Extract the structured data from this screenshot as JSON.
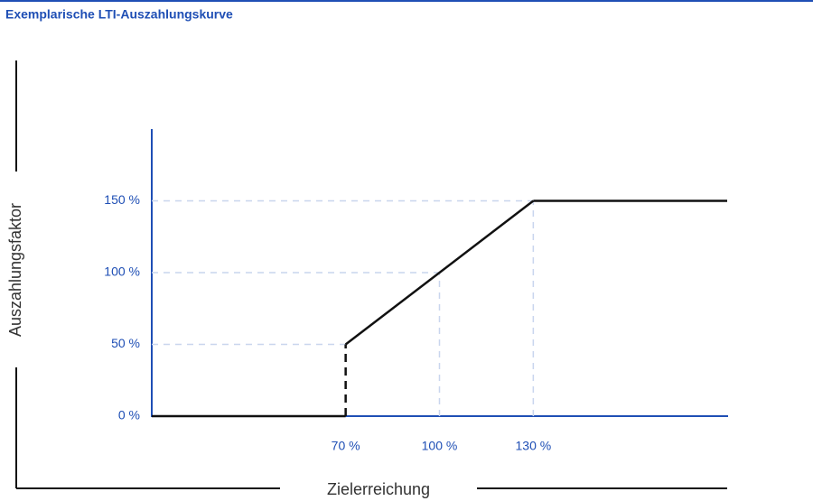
{
  "chart_data": {
    "type": "line",
    "title": "Exemplarische LTI-Auszahlungskurve",
    "x_label": "Zielerreichung",
    "y_label": "Auszahlungsfaktor",
    "series": [
      {
        "color": "#111111",
        "x": [
          8,
          70,
          70,
          130,
          192
        ],
        "values": [
          0,
          0,
          50,
          150,
          150
        ]
      }
    ],
    "xlim": [
      8,
      192
    ],
    "ylim": [
      0,
      200
    ],
    "xticks": [
      {
        "value": 70,
        "label": "70 %"
      },
      {
        "value": 100,
        "label": "100 %"
      },
      {
        "value": 130,
        "label": "130 %"
      }
    ],
    "yticks": [
      {
        "value": 0,
        "label": "0 %"
      },
      {
        "value": 50,
        "label": "50 %"
      },
      {
        "value": 100,
        "label": "100 %"
      },
      {
        "value": 150,
        "label": "150 %"
      }
    ],
    "grid": true
  }
}
